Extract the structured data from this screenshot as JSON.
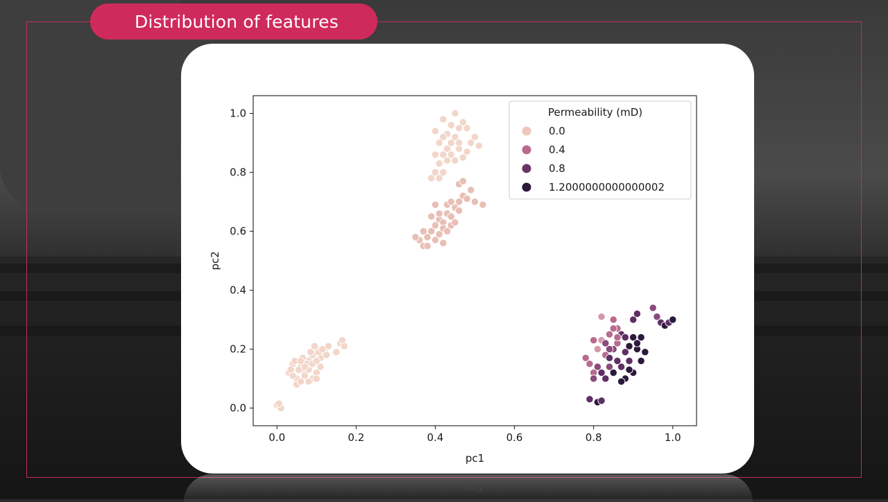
{
  "slide": {
    "title": "Distribution of features",
    "reflected_xlabel": "pc1"
  },
  "colors": {
    "accent": "#cf2a5c",
    "card": "#ffffff",
    "frame": "#c0305e"
  },
  "chart_data": {
    "type": "scatter",
    "title": "",
    "xlabel": "pc1",
    "ylabel": "pc2",
    "xlim": [
      -0.06,
      1.06
    ],
    "ylim": [
      -0.06,
      1.06
    ],
    "x_ticks": [
      "0.0",
      "0.2",
      "0.4",
      "0.6",
      "0.8",
      "1.0"
    ],
    "y_ticks": [
      "0.0",
      "0.2",
      "0.4",
      "0.6",
      "0.8",
      "1.0"
    ],
    "grid": false,
    "legend": {
      "title": "Permeability (mD)",
      "placement": "top-right",
      "entries": [
        {
          "label": "0.0",
          "color": "#ecc8bc"
        },
        {
          "label": "0.4",
          "color": "#b86b8f"
        },
        {
          "label": "0.8",
          "color": "#6a3466"
        },
        {
          "label": "1.2000000000000002",
          "color": "#2c1a3c"
        }
      ]
    },
    "hue_colors": [
      "#f2d6ca",
      "#e8bfb5",
      "#d49aa8",
      "#b86b8f",
      "#8a4a7c",
      "#5e2f63",
      "#2c1a3c"
    ],
    "points": [
      [
        0.0,
        0.01,
        0
      ],
      [
        0.01,
        0.0,
        0
      ],
      [
        0.005,
        0.015,
        0
      ],
      [
        0.03,
        0.12,
        0
      ],
      [
        0.04,
        0.15,
        0
      ],
      [
        0.05,
        0.1,
        0
      ],
      [
        0.06,
        0.14,
        0
      ],
      [
        0.07,
        0.12,
        0
      ],
      [
        0.08,
        0.16,
        0
      ],
      [
        0.09,
        0.18,
        0
      ],
      [
        0.1,
        0.2,
        0
      ],
      [
        0.11,
        0.17,
        0
      ],
      [
        0.12,
        0.19,
        0
      ],
      [
        0.13,
        0.21,
        0
      ],
      [
        0.05,
        0.08,
        0
      ],
      [
        0.06,
        0.09,
        0
      ],
      [
        0.07,
        0.11,
        0
      ],
      [
        0.08,
        0.13,
        0
      ],
      [
        0.09,
        0.1,
        0
      ],
      [
        0.1,
        0.12,
        0
      ],
      [
        0.11,
        0.14,
        0
      ],
      [
        0.04,
        0.11,
        0
      ],
      [
        0.035,
        0.13,
        0
      ],
      [
        0.045,
        0.16,
        0
      ],
      [
        0.065,
        0.17,
        0
      ],
      [
        0.075,
        0.15,
        0
      ],
      [
        0.085,
        0.19,
        0
      ],
      [
        0.095,
        0.21,
        0
      ],
      [
        0.105,
        0.19,
        0
      ],
      [
        0.115,
        0.2,
        0
      ],
      [
        0.125,
        0.18,
        0
      ],
      [
        0.08,
        0.09,
        0
      ],
      [
        0.1,
        0.1,
        0
      ],
      [
        0.055,
        0.13,
        0
      ],
      [
        0.07,
        0.14,
        0
      ],
      [
        0.16,
        0.22,
        0
      ],
      [
        0.165,
        0.23,
        0
      ],
      [
        0.17,
        0.21,
        0
      ],
      [
        0.15,
        0.19,
        0
      ],
      [
        0.06,
        0.16,
        0
      ],
      [
        0.09,
        0.15,
        0
      ],
      [
        0.1,
        0.16,
        0
      ],
      [
        0.36,
        0.57,
        1
      ],
      [
        0.37,
        0.55,
        1
      ],
      [
        0.38,
        0.58,
        1
      ],
      [
        0.39,
        0.6,
        1
      ],
      [
        0.4,
        0.62,
        1
      ],
      [
        0.41,
        0.64,
        1
      ],
      [
        0.42,
        0.63,
        1
      ],
      [
        0.43,
        0.66,
        1
      ],
      [
        0.44,
        0.65,
        1
      ],
      [
        0.45,
        0.68,
        1
      ],
      [
        0.46,
        0.7,
        1
      ],
      [
        0.47,
        0.72,
        1
      ],
      [
        0.38,
        0.55,
        1
      ],
      [
        0.4,
        0.57,
        1
      ],
      [
        0.41,
        0.59,
        1
      ],
      [
        0.42,
        0.61,
        1
      ],
      [
        0.43,
        0.6,
        1
      ],
      [
        0.44,
        0.62,
        1
      ],
      [
        0.39,
        0.65,
        1
      ],
      [
        0.37,
        0.6,
        1
      ],
      [
        0.4,
        0.69,
        1
      ],
      [
        0.41,
        0.66,
        1
      ],
      [
        0.45,
        0.63,
        1
      ],
      [
        0.46,
        0.67,
        1
      ],
      [
        0.46,
        0.76,
        1
      ],
      [
        0.47,
        0.77,
        1
      ],
      [
        0.49,
        0.74,
        1
      ],
      [
        0.5,
        0.7,
        1
      ],
      [
        0.52,
        0.69,
        1
      ],
      [
        0.35,
        0.58,
        1
      ],
      [
        0.42,
        0.56,
        1
      ],
      [
        0.43,
        0.69,
        1
      ],
      [
        0.44,
        0.7,
        1
      ],
      [
        0.48,
        0.71,
        1
      ],
      [
        0.39,
        0.78,
        0
      ],
      [
        0.4,
        0.8,
        0
      ],
      [
        0.41,
        0.83,
        0
      ],
      [
        0.42,
        0.86,
        0
      ],
      [
        0.43,
        0.88,
        0
      ],
      [
        0.44,
        0.9,
        0
      ],
      [
        0.45,
        0.92,
        0
      ],
      [
        0.46,
        0.95,
        0
      ],
      [
        0.47,
        0.97,
        0
      ],
      [
        0.45,
        1.0,
        0
      ],
      [
        0.42,
        0.98,
        0
      ],
      [
        0.43,
        0.93,
        0
      ],
      [
        0.44,
        0.86,
        0
      ],
      [
        0.46,
        0.88,
        0
      ],
      [
        0.47,
        0.85,
        0
      ],
      [
        0.48,
        0.87,
        0
      ],
      [
        0.49,
        0.9,
        0
      ],
      [
        0.5,
        0.92,
        0
      ],
      [
        0.51,
        0.89,
        0
      ],
      [
        0.4,
        0.86,
        0
      ],
      [
        0.41,
        0.9,
        0
      ],
      [
        0.42,
        0.92,
        0
      ],
      [
        0.4,
        0.94,
        0
      ],
      [
        0.44,
        0.96,
        0
      ],
      [
        0.45,
        0.84,
        0
      ],
      [
        0.43,
        0.84,
        0
      ],
      [
        0.46,
        0.9,
        0
      ],
      [
        0.48,
        0.95,
        0
      ],
      [
        0.41,
        0.78,
        0
      ],
      [
        0.42,
        0.8,
        0
      ],
      [
        0.78,
        0.17,
        3
      ],
      [
        0.79,
        0.15,
        3
      ],
      [
        0.8,
        0.12,
        3
      ],
      [
        0.81,
        0.2,
        2
      ],
      [
        0.82,
        0.23,
        2
      ],
      [
        0.82,
        0.31,
        2
      ],
      [
        0.83,
        0.18,
        3
      ],
      [
        0.84,
        0.14,
        4
      ],
      [
        0.85,
        0.2,
        4
      ],
      [
        0.86,
        0.22,
        3
      ],
      [
        0.87,
        0.25,
        5
      ],
      [
        0.88,
        0.19,
        5
      ],
      [
        0.89,
        0.21,
        6
      ],
      [
        0.9,
        0.24,
        6
      ],
      [
        0.91,
        0.2,
        6
      ],
      [
        0.92,
        0.16,
        6
      ],
      [
        0.86,
        0.27,
        3
      ],
      [
        0.85,
        0.3,
        3
      ],
      [
        0.84,
        0.25,
        3
      ],
      [
        0.87,
        0.14,
        5
      ],
      [
        0.88,
        0.1,
        6
      ],
      [
        0.9,
        0.12,
        6
      ],
      [
        0.89,
        0.16,
        5
      ],
      [
        0.83,
        0.1,
        5
      ],
      [
        0.82,
        0.12,
        5
      ],
      [
        0.8,
        0.1,
        4
      ],
      [
        0.81,
        0.14,
        4
      ],
      [
        0.84,
        0.2,
        4
      ],
      [
        0.86,
        0.16,
        5
      ],
      [
        0.85,
        0.12,
        6
      ],
      [
        0.87,
        0.09,
        6
      ],
      [
        0.79,
        0.03,
        5
      ],
      [
        0.81,
        0.02,
        6
      ],
      [
        0.82,
        0.025,
        5
      ],
      [
        0.8,
        0.23,
        3
      ],
      [
        0.9,
        0.3,
        5
      ],
      [
        0.91,
        0.32,
        5
      ],
      [
        0.95,
        0.34,
        4
      ],
      [
        0.96,
        0.31,
        4
      ],
      [
        0.97,
        0.29,
        5
      ],
      [
        0.98,
        0.28,
        6
      ],
      [
        0.99,
        0.29,
        5
      ],
      [
        1.0,
        0.3,
        6
      ],
      [
        0.93,
        0.19,
        6
      ],
      [
        0.92,
        0.24,
        6
      ],
      [
        0.88,
        0.24,
        5
      ],
      [
        0.89,
        0.13,
        6
      ],
      [
        0.84,
        0.17,
        5
      ],
      [
        0.83,
        0.22,
        4
      ],
      [
        0.86,
        0.24,
        3
      ],
      [
        0.91,
        0.22,
        6
      ],
      [
        0.85,
        0.27,
        3
      ]
    ]
  }
}
